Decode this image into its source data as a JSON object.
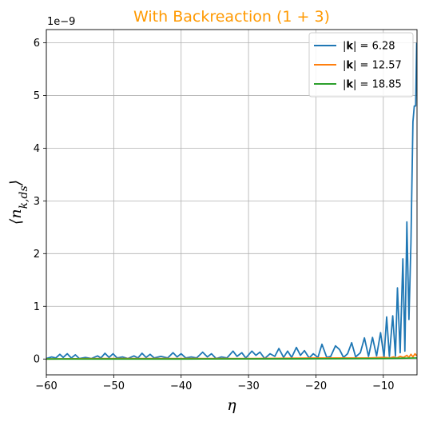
{
  "chart_data": {
    "type": "line",
    "title": "With Backreaction (1 + 3)",
    "title_color": "#ff9900",
    "xlabel": "η",
    "ylabel": "⟨n_{k,ds}⟩",
    "y_offset_label": "1e−9",
    "xlim": [
      -60,
      -5
    ],
    "ylim": [
      -0.3,
      6.25
    ],
    "x_ticks": [
      -60,
      -50,
      -40,
      -30,
      -20,
      -10
    ],
    "x_tick_labels": [
      "−60",
      "−50",
      "−40",
      "−30",
      "−20",
      "−10"
    ],
    "y_ticks": [
      0,
      1,
      2,
      3,
      4,
      5,
      6
    ],
    "y_tick_labels": [
      "0",
      "1",
      "2",
      "3",
      "4",
      "5",
      "6"
    ],
    "grid": true,
    "legend_position": "top-right",
    "series": [
      {
        "name": "|k| = 6.28",
        "name_prefix": "|",
        "name_bold": "k",
        "name_suffix": "| = 6.28",
        "color": "#1f77b4",
        "points": [
          [
            -60,
            0.01
          ],
          [
            -59.2,
            0.04
          ],
          [
            -58.6,
            0.02
          ],
          [
            -58,
            0.09
          ],
          [
            -57.5,
            0.03
          ],
          [
            -56.9,
            0.1
          ],
          [
            -56.3,
            0.02
          ],
          [
            -55.7,
            0.08
          ],
          [
            -55.1,
            0.01
          ],
          [
            -54.2,
            0.03
          ],
          [
            -53.3,
            0.01
          ],
          [
            -52.4,
            0.06
          ],
          [
            -51.9,
            0.02
          ],
          [
            -51.3,
            0.11
          ],
          [
            -50.7,
            0.03
          ],
          [
            -50.1,
            0.1
          ],
          [
            -49.5,
            0.02
          ],
          [
            -48.7,
            0.04
          ],
          [
            -47.9,
            0.01
          ],
          [
            -47.0,
            0.06
          ],
          [
            -46.4,
            0.02
          ],
          [
            -45.8,
            0.11
          ],
          [
            -45.2,
            0.03
          ],
          [
            -44.6,
            0.09
          ],
          [
            -44.0,
            0.02
          ],
          [
            -43.0,
            0.05
          ],
          [
            -42.0,
            0.02
          ],
          [
            -41.2,
            0.12
          ],
          [
            -40.6,
            0.04
          ],
          [
            -40.0,
            0.1
          ],
          [
            -39.3,
            0.02
          ],
          [
            -38.5,
            0.04
          ],
          [
            -37.7,
            0.02
          ],
          [
            -36.8,
            0.13
          ],
          [
            -36.1,
            0.04
          ],
          [
            -35.5,
            0.1
          ],
          [
            -34.8,
            0.01
          ],
          [
            -34.0,
            0.04
          ],
          [
            -33.2,
            0.02
          ],
          [
            -32.3,
            0.15
          ],
          [
            -31.7,
            0.05
          ],
          [
            -31.0,
            0.12
          ],
          [
            -30.4,
            0.02
          ],
          [
            -29.5,
            0.15
          ],
          [
            -28.9,
            0.07
          ],
          [
            -28.3,
            0.13
          ],
          [
            -27.6,
            0.01
          ],
          [
            -26.8,
            0.1
          ],
          [
            -26.1,
            0.05
          ],
          [
            -25.5,
            0.2
          ],
          [
            -24.8,
            0.03
          ],
          [
            -24.2,
            0.15
          ],
          [
            -23.6,
            0.03
          ],
          [
            -22.9,
            0.22
          ],
          [
            -22.3,
            0.07
          ],
          [
            -21.7,
            0.16
          ],
          [
            -21.0,
            0.02
          ],
          [
            -20.4,
            0.1
          ],
          [
            -19.7,
            0.03
          ],
          [
            -19.1,
            0.28
          ],
          [
            -18.4,
            0.03
          ],
          [
            -17.8,
            0.05
          ],
          [
            -17.1,
            0.25
          ],
          [
            -16.5,
            0.18
          ],
          [
            -15.9,
            0.03
          ],
          [
            -15.3,
            0.1
          ],
          [
            -14.7,
            0.31
          ],
          [
            -14.1,
            0.04
          ],
          [
            -13.4,
            0.12
          ],
          [
            -12.8,
            0.4
          ],
          [
            -12.2,
            0.05
          ],
          [
            -11.6,
            0.41
          ],
          [
            -11.0,
            0.06
          ],
          [
            -10.4,
            0.5
          ],
          [
            -9.9,
            0.03
          ],
          [
            -9.5,
            0.8
          ],
          [
            -9.1,
            0.05
          ],
          [
            -8.6,
            0.82
          ],
          [
            -8.2,
            0.06
          ],
          [
            -7.9,
            1.35
          ],
          [
            -7.5,
            0.12
          ],
          [
            -7.1,
            1.9
          ],
          [
            -6.8,
            0.15
          ],
          [
            -6.5,
            2.6
          ],
          [
            -6.2,
            0.75
          ],
          [
            -5.9,
            2.2
          ],
          [
            -5.6,
            4.5
          ],
          [
            -5.4,
            4.8
          ],
          [
            -5.2,
            4.8
          ],
          [
            -5.05,
            6.0
          ]
        ]
      },
      {
        "name": "|k| = 12.57",
        "name_prefix": "|",
        "name_bold": "k",
        "name_suffix": "| = 12.57",
        "color": "#ff7f0e",
        "points": [
          [
            -60,
            0.0
          ],
          [
            -50,
            0.01
          ],
          [
            -40,
            0.01
          ],
          [
            -30,
            0.01
          ],
          [
            -20,
            0.02
          ],
          [
            -12,
            0.02
          ],
          [
            -10,
            0.03
          ],
          [
            -9.0,
            0.02
          ],
          [
            -8.5,
            0.04
          ],
          [
            -8.0,
            0.02
          ],
          [
            -7.5,
            0.05
          ],
          [
            -7.0,
            0.03
          ],
          [
            -6.5,
            0.07
          ],
          [
            -6.2,
            0.03
          ],
          [
            -5.9,
            0.09
          ],
          [
            -5.6,
            0.04
          ],
          [
            -5.3,
            0.1
          ],
          [
            -5.05,
            0.06
          ]
        ]
      },
      {
        "name": "|k| = 18.85",
        "name_prefix": "|",
        "name_bold": "k",
        "name_suffix": "| = 18.85",
        "color": "#2ca02c",
        "points": [
          [
            -60,
            0.0
          ],
          [
            -40,
            0.0
          ],
          [
            -20,
            0.005
          ],
          [
            -10,
            0.01
          ],
          [
            -7,
            0.015
          ],
          [
            -5.05,
            0.02
          ]
        ]
      }
    ]
  }
}
